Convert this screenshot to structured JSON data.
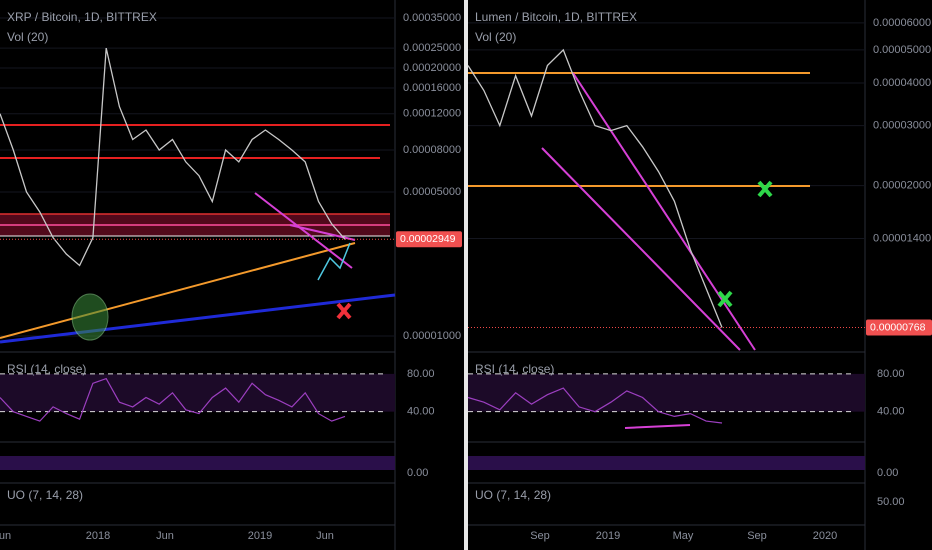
{
  "chart_data": [
    {
      "type": "line",
      "title": "XRP / Bitcoin, 1D, BITTREX",
      "subtitle": "Vol (20)",
      "log_scale": true,
      "grid": true,
      "color": "#c8c8c8",
      "values": [
        0.00012,
        8e-05,
        5e-05,
        4e-05,
        3e-05,
        2.5e-05,
        2.2e-05,
        3e-05,
        0.00025,
        0.00013,
        9e-05,
        0.0001,
        8e-05,
        9e-05,
        7e-05,
        6e-05,
        4.5e-05,
        8e-05,
        7e-05,
        9e-05,
        0.0001,
        9e-05,
        8e-05,
        7e-05,
        4.5e-05,
        3.5e-05,
        2.949e-05
      ],
      "ylim": [
        8.55e-06,
        0.000428
      ],
      "yticks": [
        {
          "value": 0.00035,
          "label": "0.00035000"
        },
        {
          "value": 0.00025,
          "label": "0.00025000"
        },
        {
          "value": 0.0002,
          "label": "0.00020000"
        },
        {
          "value": 0.00016,
          "label": "0.00016000"
        },
        {
          "value": 0.00012,
          "label": "0.00012000"
        },
        {
          "value": 8e-05,
          "label": "0.00008000"
        },
        {
          "value": 5e-05,
          "label": "0.00005000"
        },
        {
          "value": 1e-05,
          "label": "0.00001000"
        }
      ],
      "last_price": {
        "value": 2.949e-05,
        "label": "0.00002949"
      },
      "x_labels": [
        "un",
        "2018",
        "Jun",
        "2019",
        "Jun"
      ],
      "rsi": {
        "label": "RSI (14, close)",
        "color": "#9c3fc0",
        "values": [
          55,
          40,
          35,
          30,
          45,
          38,
          32,
          70,
          75,
          50,
          45,
          55,
          48,
          60,
          42,
          38,
          55,
          65,
          50,
          70,
          58,
          52,
          45,
          60,
          38,
          30,
          35
        ],
        "ylim": [
          10,
          100
        ],
        "yticks": [
          {
            "value": 80,
            "label": "80.00"
          },
          {
            "value": 40,
            "label": "40.00"
          }
        ]
      },
      "stoch": {
        "yticks": [
          {
            "value": 0,
            "label": "0.00"
          }
        ]
      },
      "uo": {
        "label": "UO (7, 14, 28)"
      }
    },
    {
      "type": "line",
      "title": "Lumen / Bitcoin, 1D, BITTREX",
      "subtitle": "Vol (20)",
      "log_scale": true,
      "grid": true,
      "color": "#c8c8c8",
      "values": [
        4.5e-05,
        3.8e-05,
        3e-05,
        4.2e-05,
        3.2e-05,
        4.5e-05,
        5e-05,
        3.8e-05,
        3e-05,
        2.9e-05,
        3e-05,
        2.6e-05,
        2.2e-05,
        1.8e-05,
        1.3e-05,
        1e-05,
        7.68e-06
      ],
      "ylim": [
        6.6e-06,
        7e-05
      ],
      "yticks": [
        {
          "value": 6e-05,
          "label": "0.00006000"
        },
        {
          "value": 5e-05,
          "label": "0.00005000"
        },
        {
          "value": 4e-05,
          "label": "0.00004000"
        },
        {
          "value": 3e-05,
          "label": "0.00003000"
        },
        {
          "value": 2e-05,
          "label": "0.00002000"
        },
        {
          "value": 1.4e-05,
          "label": "0.00001400"
        }
      ],
      "last_price": {
        "value": 7.68e-06,
        "label": "0.00000768"
      },
      "x_labels": [
        "Sep",
        "2019",
        "May",
        "Sep",
        "2020"
      ],
      "rsi": {
        "label": "RSI (14, close)",
        "color": "#9c3fc0",
        "values": [
          55,
          50,
          42,
          60,
          48,
          58,
          65,
          45,
          40,
          50,
          62,
          55,
          40,
          35,
          38,
          30,
          28
        ],
        "ylim": [
          10,
          100
        ],
        "yticks": [
          {
            "value": 80,
            "label": "80.00"
          },
          {
            "value": 40,
            "label": "40.00"
          }
        ]
      },
      "stoch": {
        "yticks": [
          {
            "value": 0,
            "label": "0.00"
          }
        ]
      },
      "uo": {
        "label": "UO (7, 14, 28)",
        "yticks": [
          {
            "value": 50,
            "label": "50.00"
          }
        ]
      }
    }
  ]
}
